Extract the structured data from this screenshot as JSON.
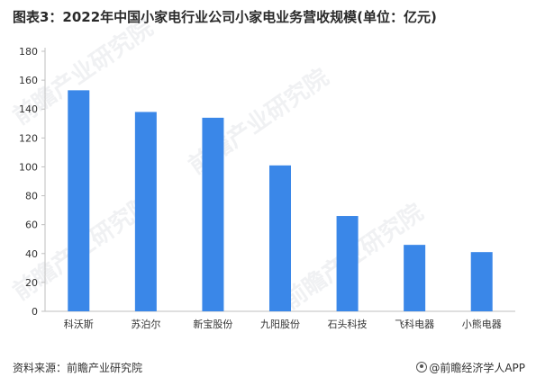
{
  "title": "图表3：2022年中国小家电行业公司小家电业务营收规模(单位：亿元)",
  "footer": {
    "source": "资料来源：前瞻产业研究院",
    "brand": "@前瞻经济学人APP"
  },
  "watermarks": [
    "前瞻产业研究院",
    "前瞻产业研究院",
    "前瞻产业研究院",
    "前瞻产业研究院"
  ],
  "colors": {
    "bar": "#3a87e8",
    "axis": "#bfbfbf"
  },
  "chart_data": {
    "type": "bar",
    "title": "图表3：2022年中国小家电行业公司小家电业务营收规模(单位：亿元)",
    "xlabel": "",
    "ylabel": "",
    "categories": [
      "科沃斯",
      "苏泊尔",
      "新宝股份",
      "九阳股份",
      "石头科技",
      "飞科电器",
      "小熊电器"
    ],
    "values": [
      153,
      138,
      134,
      101,
      66,
      46,
      41
    ],
    "ylim": [
      0,
      180
    ],
    "yticks": [
      0,
      20,
      40,
      60,
      80,
      100,
      120,
      140,
      160,
      180
    ],
    "grid": false,
    "legend": "none"
  }
}
